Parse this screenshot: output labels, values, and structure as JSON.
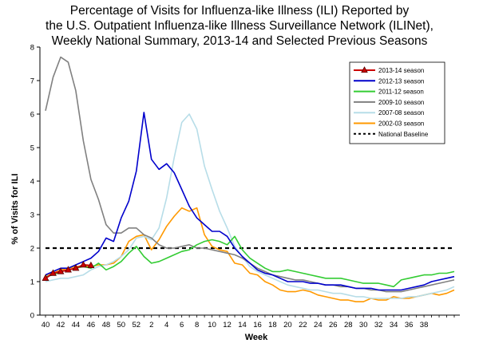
{
  "chart_data": {
    "type": "line",
    "title_lines": [
      "Percentage of Visits for Influenza-like Illness (ILI) Reported by",
      "the U.S. Outpatient Influenza-like Illness Surveillance Network (ILINet),",
      "Weekly National Summary, 2013-14 and Selected Previous Seasons"
    ],
    "xlabel": "Week",
    "ylabel": "% of Visits for ILI",
    "ylim": [
      0,
      8
    ],
    "y_ticks": [
      "0",
      "1",
      "2",
      "3",
      "4",
      "5",
      "6",
      "7",
      "8"
    ],
    "x_tick_labels": [
      "40",
      "42",
      "44",
      "46",
      "48",
      "50",
      "52",
      "2",
      "4",
      "6",
      "8",
      "10",
      "12",
      "14",
      "16",
      "18",
      "20",
      "22",
      "24",
      "26",
      "28",
      "30",
      "32",
      "34",
      "36",
      "38"
    ],
    "x_tick_note": "Week positions are sequential across the season: 40..52 then 1..39; tick labels shown every 2 weeks.",
    "grid": false,
    "legend_position": "top-right",
    "baseline": {
      "name": "National Baseline",
      "value": 2.0,
      "color": "#000000",
      "style": "dashed"
    },
    "series": [
      {
        "name": "2013-14 season",
        "color": "#cc0000",
        "marker": "triangle",
        "values": [
          1.1,
          1.25,
          1.3,
          1.35,
          1.4,
          1.5,
          1.48
        ]
      },
      {
        "name": "2012-13 season",
        "color": "#0000cc",
        "values": [
          1.2,
          1.3,
          1.4,
          1.4,
          1.5,
          1.6,
          1.7,
          1.9,
          2.3,
          2.2,
          2.9,
          3.4,
          4.3,
          6.05,
          4.65,
          4.35,
          4.52,
          4.25,
          3.75,
          3.25,
          2.9,
          2.7,
          2.5,
          2.5,
          2.35,
          2.0,
          1.75,
          1.55,
          1.35,
          1.25,
          1.2,
          1.1,
          1.0,
          1.0,
          1.0,
          0.95,
          0.95,
          0.9,
          0.9,
          0.9,
          0.85,
          0.8,
          0.8,
          0.8,
          0.75,
          0.75,
          0.75,
          0.75,
          0.8,
          0.85,
          0.9,
          1.0,
          1.05,
          1.1,
          1.15
        ]
      },
      {
        "name": "2011-12 season",
        "color": "#33cc33",
        "values": [
          1.15,
          1.2,
          1.3,
          1.35,
          1.4,
          1.45,
          1.4,
          1.55,
          1.35,
          1.45,
          1.6,
          1.85,
          2.05,
          1.75,
          1.55,
          1.6,
          1.7,
          1.8,
          1.9,
          1.95,
          2.1,
          2.2,
          2.25,
          2.2,
          2.1,
          2.35,
          1.95,
          1.7,
          1.55,
          1.4,
          1.3,
          1.3,
          1.35,
          1.3,
          1.25,
          1.2,
          1.15,
          1.1,
          1.1,
          1.1,
          1.05,
          1.0,
          0.95,
          0.95,
          0.95,
          0.9,
          0.85,
          1.05,
          1.1,
          1.15,
          1.2,
          1.2,
          1.25,
          1.25,
          1.3
        ]
      },
      {
        "name": "2009-10 season",
        "color": "#808080",
        "values": [
          6.1,
          7.1,
          7.7,
          7.55,
          6.7,
          5.2,
          4.05,
          3.45,
          2.7,
          2.45,
          2.45,
          2.6,
          2.6,
          2.4,
          2.3,
          2.1,
          2.0,
          2.0,
          2.05,
          2.1,
          2.0,
          2.0,
          1.95,
          1.9,
          1.85,
          1.8,
          1.7,
          1.55,
          1.4,
          1.3,
          1.2,
          1.15,
          1.1,
          1.05,
          1.05,
          1.0,
          0.95,
          0.9,
          0.9,
          0.85,
          0.85,
          0.8,
          0.8,
          0.75,
          0.75,
          0.7,
          0.7,
          0.7,
          0.75,
          0.8,
          0.85,
          0.9,
          0.95,
          1.0,
          1.05
        ]
      },
      {
        "name": "2007-08 season",
        "color": "#b7dde8",
        "values": [
          1.0,
          1.05,
          1.1,
          1.1,
          1.15,
          1.2,
          1.35,
          1.45,
          1.5,
          1.6,
          1.75,
          1.95,
          2.3,
          2.35,
          2.25,
          2.6,
          3.5,
          4.7,
          5.75,
          6.0,
          5.55,
          4.45,
          3.75,
          3.1,
          2.6,
          2.05,
          1.75,
          1.45,
          1.3,
          1.2,
          1.1,
          1.0,
          0.9,
          0.85,
          0.8,
          0.75,
          0.75,
          0.7,
          0.65,
          0.65,
          0.6,
          0.55,
          0.55,
          0.5,
          0.5,
          0.5,
          0.5,
          0.5,
          0.55,
          0.55,
          0.6,
          0.65,
          0.7,
          0.75,
          0.85
        ]
      },
      {
        "name": "2002-03 season",
        "color": "#ff9900",
        "values": [
          1.2,
          1.25,
          1.35,
          1.4,
          1.45,
          1.45,
          1.45,
          1.5,
          1.5,
          1.55,
          1.75,
          2.2,
          2.35,
          2.4,
          1.95,
          2.25,
          2.65,
          2.95,
          3.2,
          3.1,
          3.2,
          2.4,
          2.05,
          1.95,
          1.9,
          1.55,
          1.5,
          1.25,
          1.2,
          1.0,
          0.9,
          0.75,
          0.7,
          0.7,
          0.75,
          0.7,
          0.6,
          0.55,
          0.5,
          0.45,
          0.45,
          0.4,
          0.4,
          0.5,
          0.45,
          0.45,
          0.55,
          0.5,
          0.5,
          0.55,
          0.6,
          0.65,
          0.6,
          0.65,
          0.75
        ]
      }
    ]
  }
}
